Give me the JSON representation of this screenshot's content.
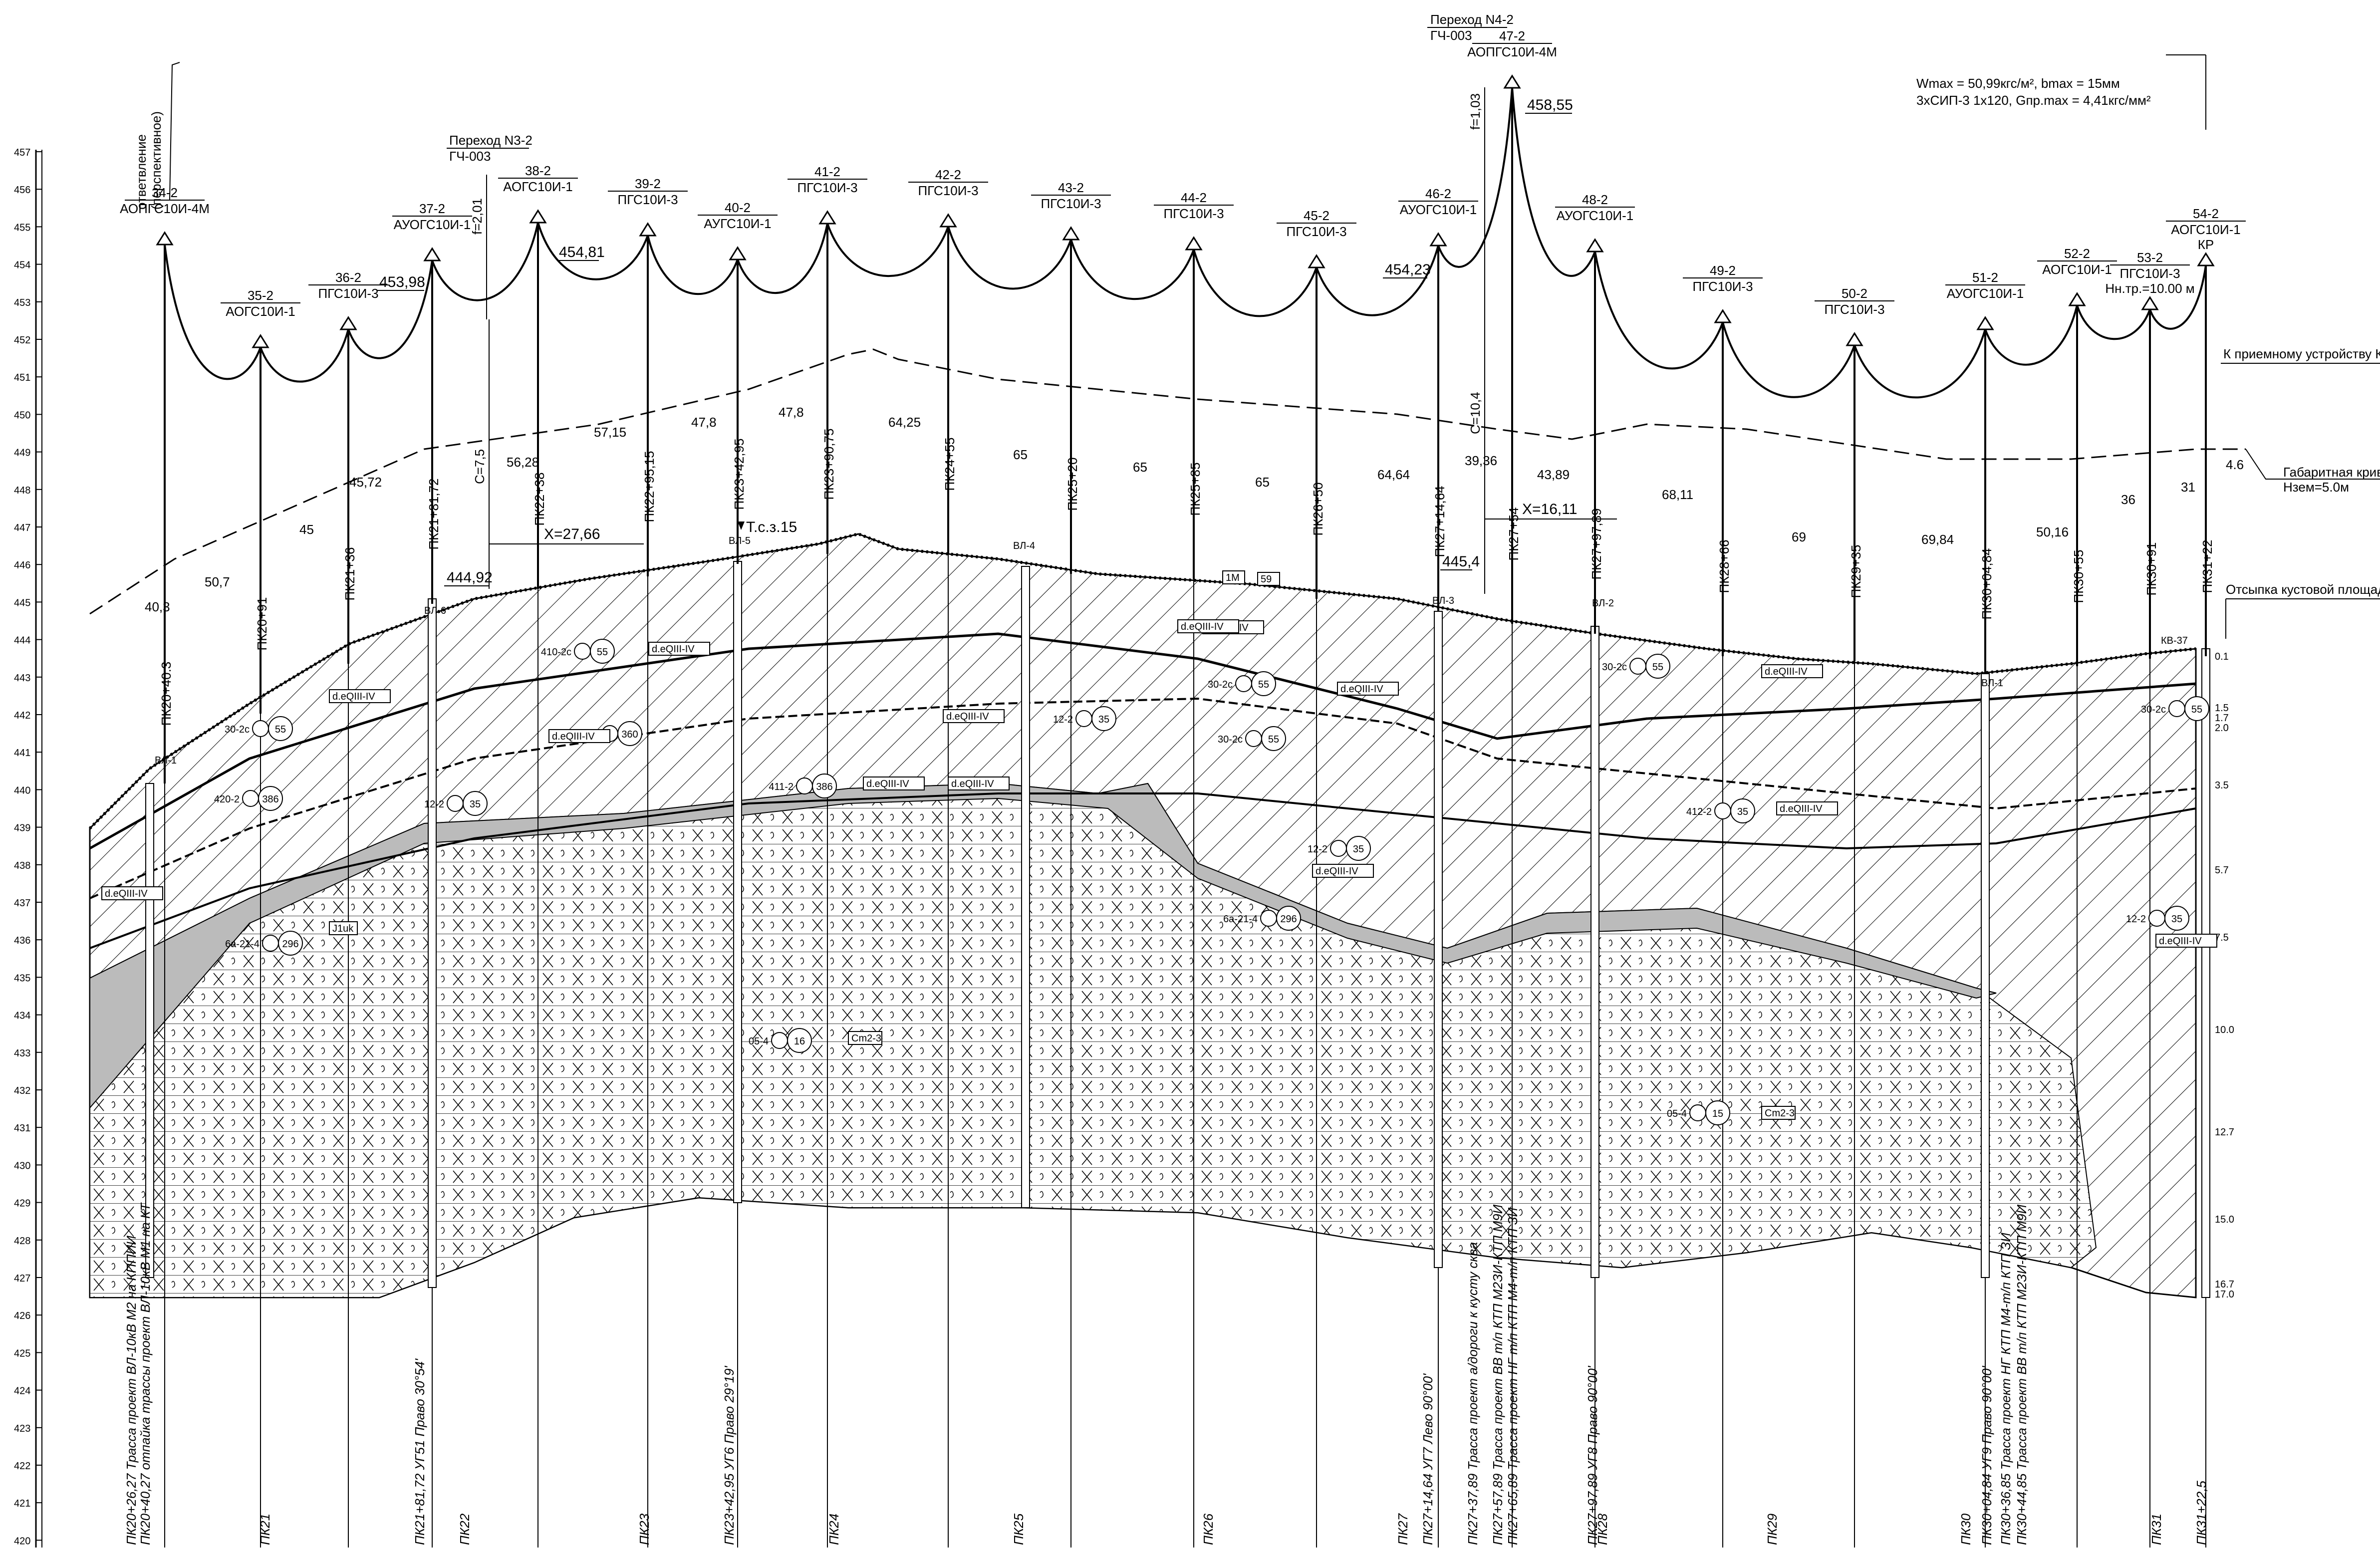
{
  "scale": {
    "ticks": [
      "457",
      "456",
      "455",
      "454",
      "453",
      "452",
      "451",
      "450",
      "449",
      "448",
      "447",
      "446",
      "445",
      "444",
      "443",
      "442",
      "441",
      "440",
      "439",
      "438",
      "437",
      "436",
      "435",
      "434",
      "433",
      "432",
      "431",
      "430",
      "429",
      "428",
      "427",
      "426",
      "425",
      "424",
      "423",
      "422",
      "421",
      "420"
    ]
  },
  "header_note": {
    "line1": "Wmax = 50,99кгс/м², bmax = 15мм",
    "line2": "3хСИП-3 1х120, Gпр.max = 4,41кгс/мм²"
  },
  "branch_note": {
    "line1": "ответвление",
    "line2": "(перспективное)"
  },
  "crossings": [
    {
      "title": "Переход N3-2",
      "code": "ГЧ-003"
    },
    {
      "title": "Переход N4-2",
      "code": "ГЧ-003"
    }
  ],
  "supports": [
    {
      "number": "34-2",
      "type": "АОПГС10И-4М"
    },
    {
      "number": "35-2",
      "type": "АОГС10И-1"
    },
    {
      "number": "36-2",
      "type": "ПГС10И-3"
    },
    {
      "number": "37-2",
      "type": "АУОГС10И-1"
    },
    {
      "number": "38-2",
      "type": "АОГС10И-1"
    },
    {
      "number": "39-2",
      "type": "ПГС10И-3"
    },
    {
      "number": "40-2",
      "type": "АУГС10И-1"
    },
    {
      "number": "41-2",
      "type": "ПГС10И-3"
    },
    {
      "number": "42-2",
      "type": "ПГС10И-3"
    },
    {
      "number": "43-2",
      "type": "ПГС10И-3"
    },
    {
      "number": "44-2",
      "type": "ПГС10И-3"
    },
    {
      "number": "45-2",
      "type": "ПГС10И-3"
    },
    {
      "number": "46-2",
      "type": "АУОГС10И-1"
    },
    {
      "number": "47-2",
      "type": "АОПГС10И-4М"
    },
    {
      "number": "48-2",
      "type": "АУОГС10И-1"
    },
    {
      "number": "49-2",
      "type": "ПГС10И-3"
    },
    {
      "number": "50-2",
      "type": "ПГС10И-3"
    },
    {
      "number": "51-2",
      "type": "АУОГС10И-1"
    },
    {
      "number": "52-2",
      "type": "АОГС10И-1"
    },
    {
      "number": "53-2",
      "type": "ПГС10И-3",
      "extra": "Нн.тр.=10.00 м"
    },
    {
      "number": "54-2",
      "type": "АОГС10И-1",
      "extra": "КР"
    }
  ],
  "elevations": [
    "453,98",
    "454,81",
    "454,23",
    "458,55",
    "444,92",
    "445,4"
  ],
  "sag_labels": [
    "f=2,01",
    "f=1,03"
  ],
  "c_labels": [
    "C=7,5",
    "C=10,4"
  ],
  "x_labels": [
    "X=27,66",
    "X=16,11"
  ],
  "pickets": [
    "ПК20+40.3",
    "ПК20+91",
    "ПК21+36",
    "ПК21+81,72",
    "ПК22+38",
    "ПК22+95,15",
    "ПК23+42,95",
    "ПК23+90,75",
    "ПК24+55",
    "ПК25+20",
    "ПК25+85",
    "ПК26+50",
    "ПК27+14,64",
    "ПК27+54",
    "ПК27+97,89",
    "ПК28+66",
    "ПК29+35",
    "ПК30+04,84",
    "ПК30+55",
    "ПК30+91",
    "ПК31+22"
  ],
  "span_lengths": [
    "40,3",
    "50,7",
    "45",
    "45,72",
    "56,28",
    "57,15",
    "47,8",
    "47,8",
    "64,25",
    "65",
    "65",
    "65",
    "64,64",
    "39,36",
    "43,89",
    "68,11",
    "69",
    "69,84",
    "50,16",
    "36",
    "31",
    "4.6"
  ],
  "callouts": {
    "kpt": "К приемному устройству КТП",
    "gabarit_1": "Габаритная кривая",
    "gabarit_2": "Hзем=5.0м",
    "fill": "Отсыпка кустовой площадки",
    "ts": "Т.с.з.15"
  },
  "bottom_notes": [
    "ПК20+26,27 Трасса проект ВЛ-10кВ М2 на КППИИ",
    "ПК20+40,27 отпайка трассы проект ВЛ-10кВ М1 на КТ",
    "ПК21",
    "ПК21+81,72 УГ51 Право 30°54'",
    "ПК22",
    "ПК23",
    "ПК23+42,95 УГ6 Право 29°19'",
    "ПК24",
    "ПК25",
    "ПК26",
    "ПК27",
    "ПК27+14,64 УГ7 Лево 90°00'",
    "ПК27+37,89 Трасса проект а/дороги к кусту сква",
    "ПК27+57,89 Трасса проект ВВ т/п КТП М2ЗИ-КТП М9И",
    "ПК27+65,89 Трасса проект НГ т/п КТП М4-т/п КТП ЗИ",
    "ПК27+97,89 УГ8 Право 90°00'",
    "ПК28",
    "ПК29",
    "ПК30",
    "ПК30+04,84 УГ9 Право 90°00'",
    "ПК30+36,85 Трасса проект НГ КТП М4-т/п КТП ЗИ",
    "ПК30+44,85 Трасса проект ВВ т/п КТП М2ЗИ-КТП М9И",
    "ПК31",
    "ПК31+22,5"
  ],
  "soils": [
    {
      "code": "30-2с",
      "n": "55"
    },
    {
      "code": "420-2",
      "n": "386"
    },
    {
      "code": "6а-21-4",
      "n": "296"
    },
    {
      "code": "12-2",
      "n": "35"
    },
    {
      "code": "410-2с",
      "n": "55"
    },
    {
      "code": "48",
      "n": "360"
    },
    {
      "code": "411-2",
      "n": "386"
    },
    {
      "code": "05-4",
      "n": "16"
    },
    {
      "code": "12-2",
      "n": "35"
    },
    {
      "code": "30-2с",
      "n": "55"
    },
    {
      "code": "30-2с",
      "n": "55"
    },
    {
      "code": "12-2",
      "n": "35"
    },
    {
      "code": "6а-21-4",
      "n": "296"
    },
    {
      "code": "30-2с",
      "n": "55"
    },
    {
      "code": "412-2",
      "n": "35"
    },
    {
      "code": "05-4",
      "n": "15"
    },
    {
      "code": "30-2с",
      "n": "55"
    },
    {
      "code": "12-2",
      "n": "35"
    }
  ],
  "soil_tags": [
    "d.eQIII-IV",
    "d.eQIII-IV",
    "d.eQIII-IV",
    "d.eQIII-IV",
    "d.eQIII-IV",
    "d.eQIII-IV",
    "d.eQIII-IV",
    "d.eQIII-IV",
    "d.eQIII-IV",
    "d.eQIII-IV",
    "d.eQIII-IV",
    "d.eQIII-IV",
    "d.eQIII-IV",
    "d.eQIII-IV",
    "Cm2-3",
    "Cm2-3",
    "J1uk",
    "1М",
    "59"
  ],
  "boreholes": [
    "ВЛ-1",
    "ВЛ-6",
    "ВЛ-5",
    "ВЛ-4",
    "ВЛ-3",
    "ВЛ-2",
    "ВЛ-1",
    "КВ-37"
  ],
  "bore_depths": [
    "0.1",
    "1.5",
    "1.7",
    "2.0",
    "3.5",
    "5.7",
    "7.5",
    "10.0",
    "12.7",
    "15.0",
    "16.7",
    "17.0"
  ]
}
